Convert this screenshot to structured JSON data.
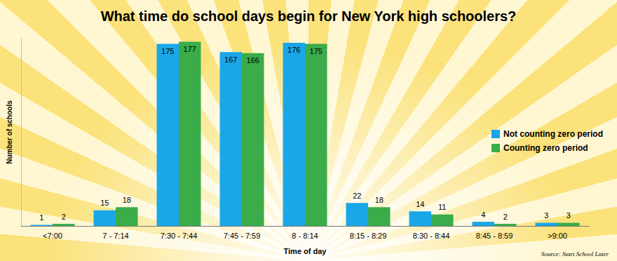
{
  "chart_data": {
    "type": "bar",
    "title": "What time do school days begin for New York high schoolers?",
    "x_label": "Time of day",
    "y_label": "Number of schools",
    "source": "Source: Start School Later",
    "categories": [
      "<7:00",
      "7 - 7:14",
      "7:30 - 7:44",
      "7:45 - 7:59",
      "8 - 8:14",
      "8:15 - 8:29",
      "8:30 - 8:44",
      "8:45 - 8:59",
      ">9:00"
    ],
    "series": [
      {
        "name": "Not counting zero period",
        "color": "#1aa7e8",
        "values": [
          1,
          15,
          175,
          167,
          176,
          22,
          14,
          4,
          3
        ]
      },
      {
        "name": "Counting zero period",
        "color": "#3aac4a",
        "values": [
          2,
          18,
          177,
          166,
          175,
          18,
          11,
          2,
          3
        ]
      }
    ],
    "ylim": [
      0,
      180
    ],
    "tick_labels": "x",
    "data_labels": true,
    "legend": "right",
    "grid": false
  }
}
